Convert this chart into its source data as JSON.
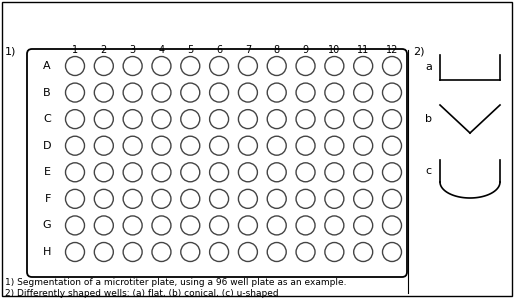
{
  "background_color": "#ffffff",
  "text_color": "#000000",
  "well_edge_color": "#444444",
  "well_face_color": "#ffffff",
  "rows": [
    "A",
    "B",
    "C",
    "D",
    "E",
    "F",
    "G",
    "H"
  ],
  "cols": [
    "1",
    "2",
    "3",
    "4",
    "5",
    "6",
    "7",
    "8",
    "9",
    "10",
    "11",
    "12"
  ],
  "label_1": "1)",
  "label_2": "2)",
  "well_label_a": "a",
  "well_label_b": "b",
  "well_label_c": "c",
  "caption_line1": "1) Segmentation of a microtiter plate, using a 96 well plate as an example.",
  "caption_line2": "2) Differently shaped wells: (a) flat, (b) conical, (c) u-shaped",
  "figsize": [
    5.14,
    2.98
  ],
  "dpi": 100
}
